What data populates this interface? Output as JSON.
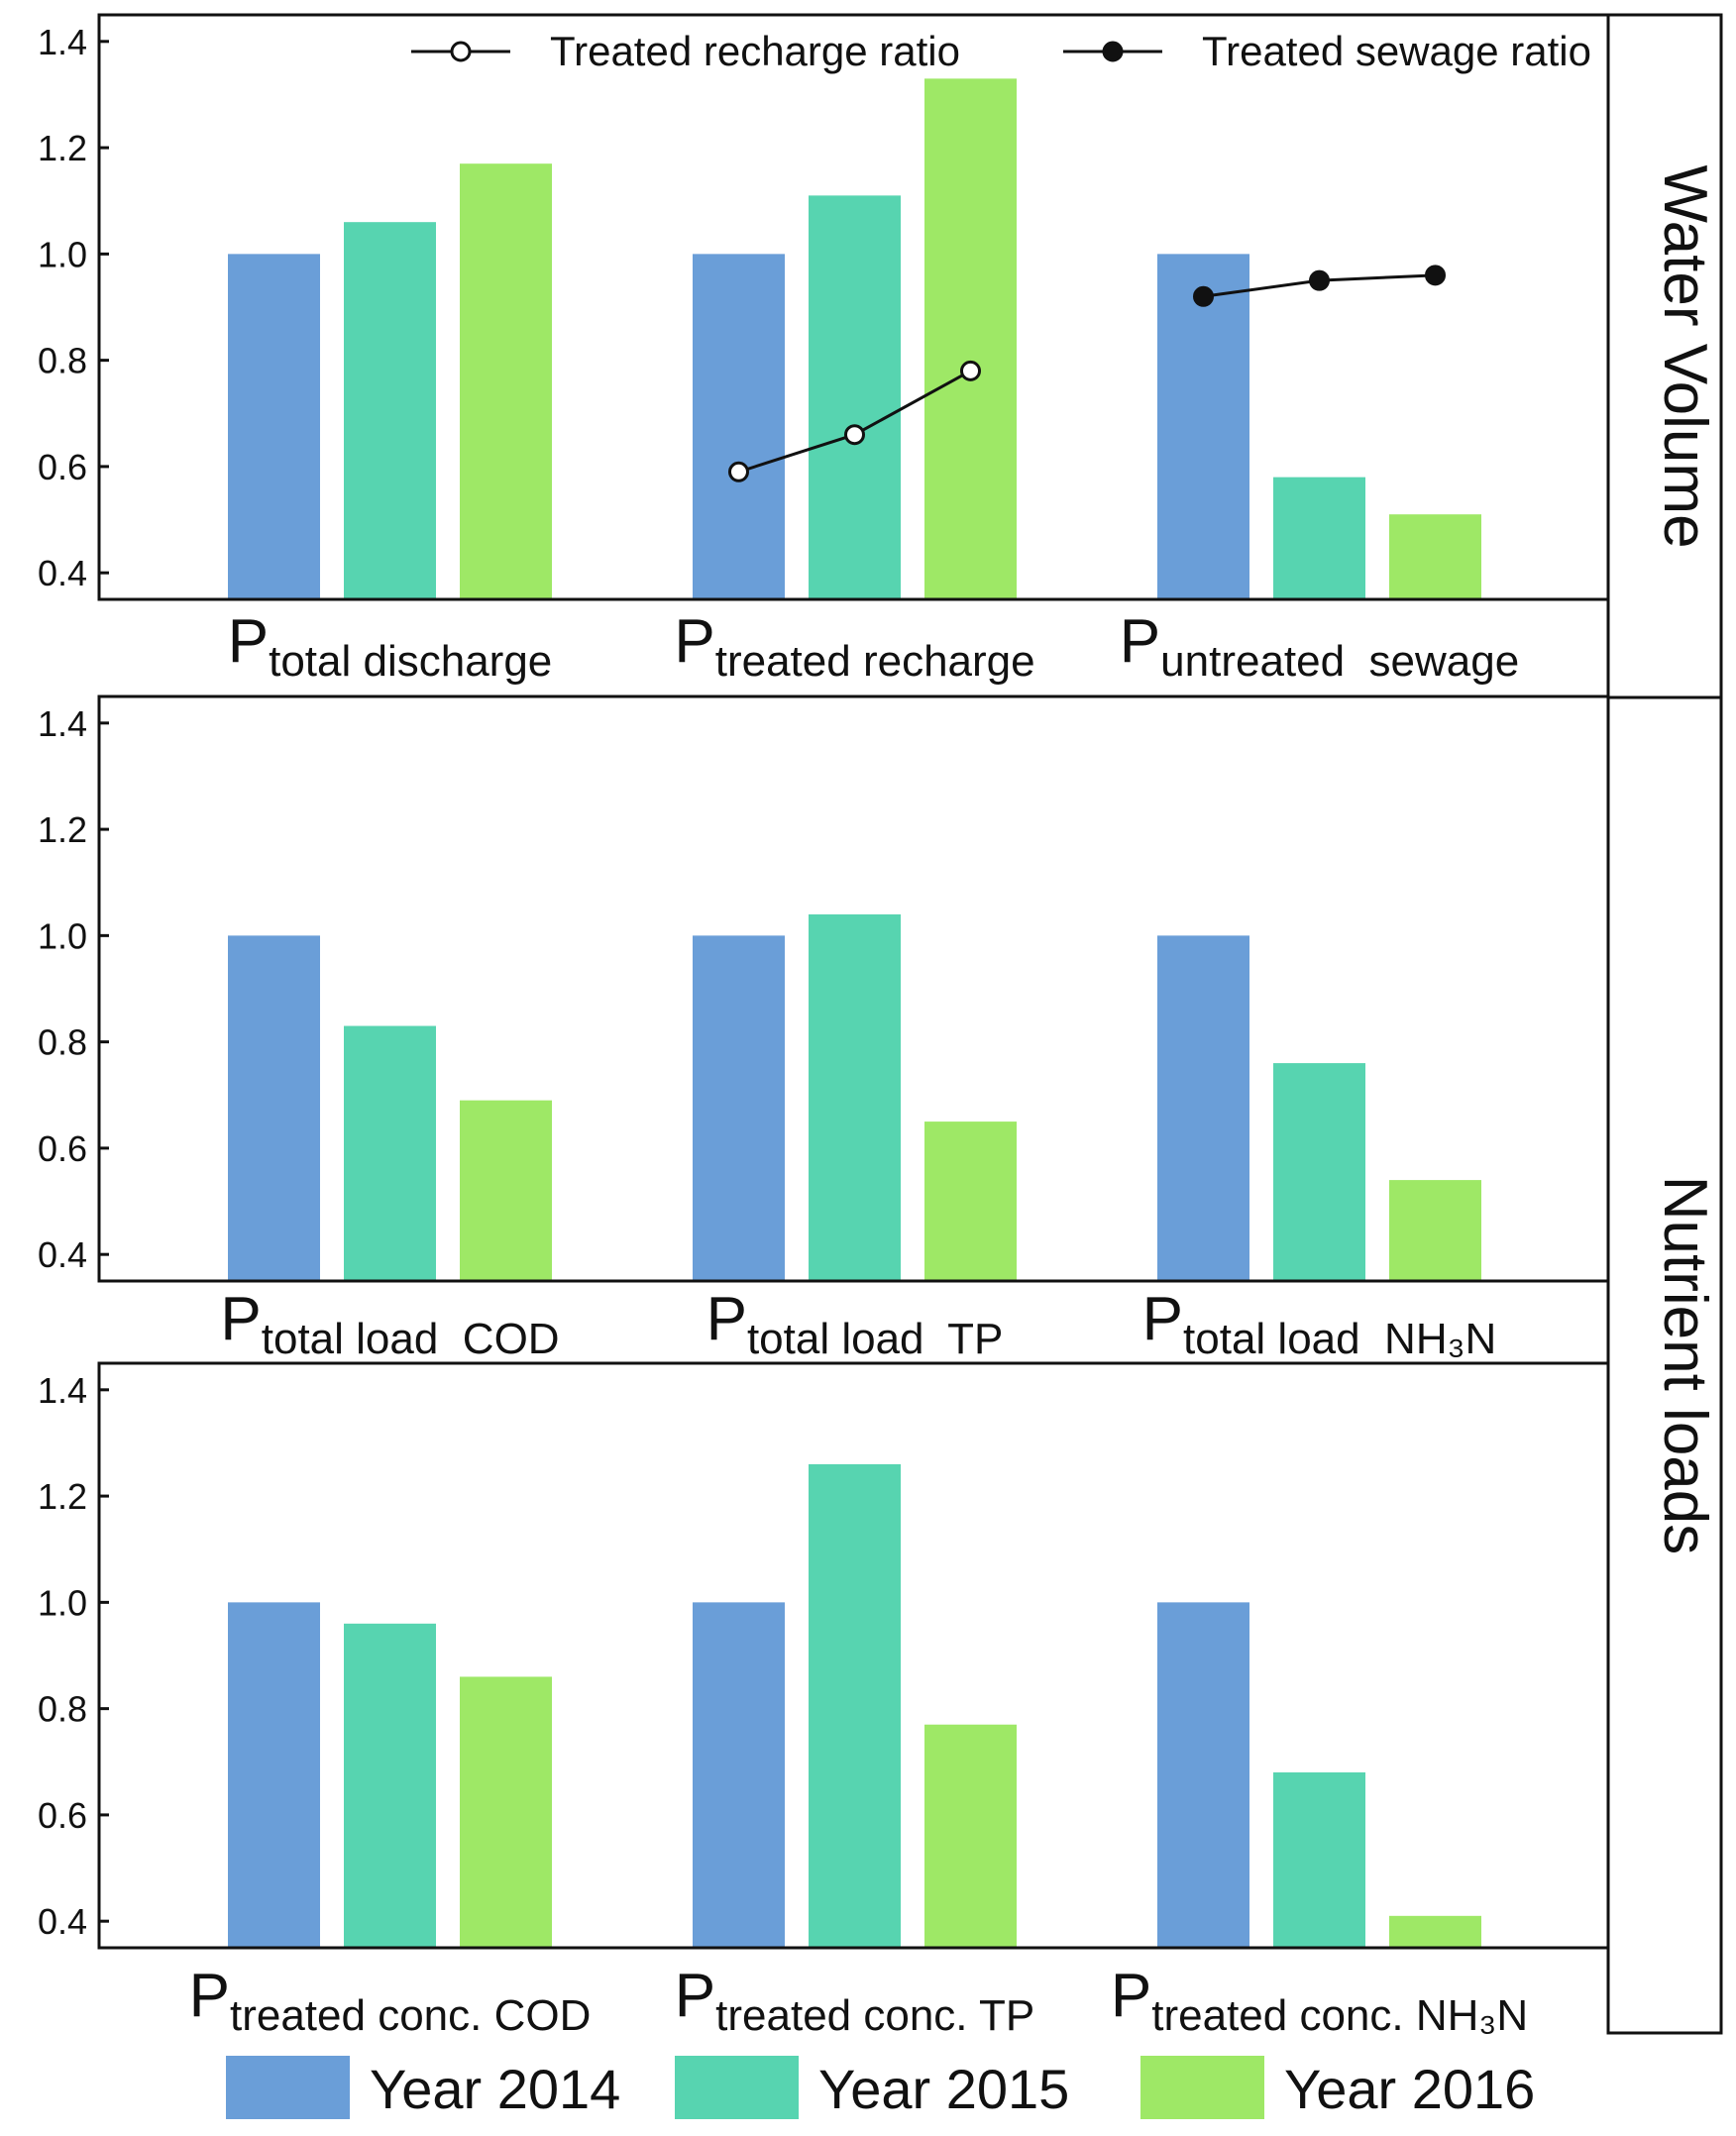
{
  "chart_data": [
    {
      "type": "bar",
      "panel": "water-volume",
      "side_label": "Water Volume",
      "categories": [
        {
          "main": "P",
          "sub": "total discharge"
        },
        {
          "main": "P",
          "sub": "treated recharge"
        },
        {
          "main": "P",
          "sub": "untreated  sewage"
        }
      ],
      "series": [
        {
          "name": "Year 2014",
          "values": [
            1.0,
            1.0,
            1.0
          ]
        },
        {
          "name": "Year 2015",
          "values": [
            1.06,
            1.11,
            0.58
          ]
        },
        {
          "name": "Year 2016",
          "values": [
            1.17,
            1.33,
            0.51
          ]
        }
      ],
      "lines": [
        {
          "name": "Treated recharge ratio",
          "marker": "open-circle",
          "category_index": 1,
          "values": [
            0.59,
            0.66,
            0.78
          ]
        },
        {
          "name": "Treated sewage ratio",
          "marker": "filled-circle",
          "category_index": 2,
          "values": [
            0.92,
            0.95,
            0.96
          ]
        }
      ],
      "yticks": [
        "0.4",
        "0.6",
        "0.8",
        "1.0",
        "1.2",
        "1.4"
      ],
      "ylim": [
        0.35,
        1.45
      ]
    },
    {
      "type": "bar",
      "panel": "nutrient-loads-total",
      "categories": [
        {
          "main": "P",
          "sub": "total load  COD"
        },
        {
          "main": "P",
          "sub": "total load  TP"
        },
        {
          "main": "P",
          "sub": "total load  NH₃N"
        }
      ],
      "series": [
        {
          "name": "Year 2014",
          "values": [
            1.0,
            1.0,
            1.0
          ]
        },
        {
          "name": "Year 2015",
          "values": [
            0.83,
            1.04,
            0.76
          ]
        },
        {
          "name": "Year 2016",
          "values": [
            0.69,
            0.65,
            0.54
          ]
        }
      ],
      "yticks": [
        "0.4",
        "0.6",
        "0.8",
        "1.0",
        "1.2",
        "1.4"
      ],
      "ylim": [
        0.35,
        1.45
      ]
    },
    {
      "type": "bar",
      "panel": "nutrient-loads-conc",
      "categories": [
        {
          "main": "P",
          "sub": "treated conc. COD"
        },
        {
          "main": "P",
          "sub": "treated conc. TP"
        },
        {
          "main": "P",
          "sub": "treated conc. NH₃N"
        }
      ],
      "series": [
        {
          "name": "Year 2014",
          "values": [
            1.0,
            1.0,
            1.0
          ]
        },
        {
          "name": "Year 2015",
          "values": [
            0.96,
            1.26,
            0.68
          ]
        },
        {
          "name": "Year 2016",
          "values": [
            0.86,
            0.77,
            0.41
          ]
        }
      ],
      "yticks": [
        "0.4",
        "0.6",
        "0.8",
        "1.0",
        "1.2",
        "1.4"
      ],
      "ylim": [
        0.35,
        1.45
      ]
    }
  ],
  "side_label_bottom": "Nutrient loads",
  "legend": [
    {
      "label": "Year 2014",
      "color": "#6a9ed8"
    },
    {
      "label": "Year 2015",
      "color": "#57d4b0"
    },
    {
      "label": "Year 2016",
      "color": "#9ee866"
    }
  ],
  "line_color": "#111111"
}
